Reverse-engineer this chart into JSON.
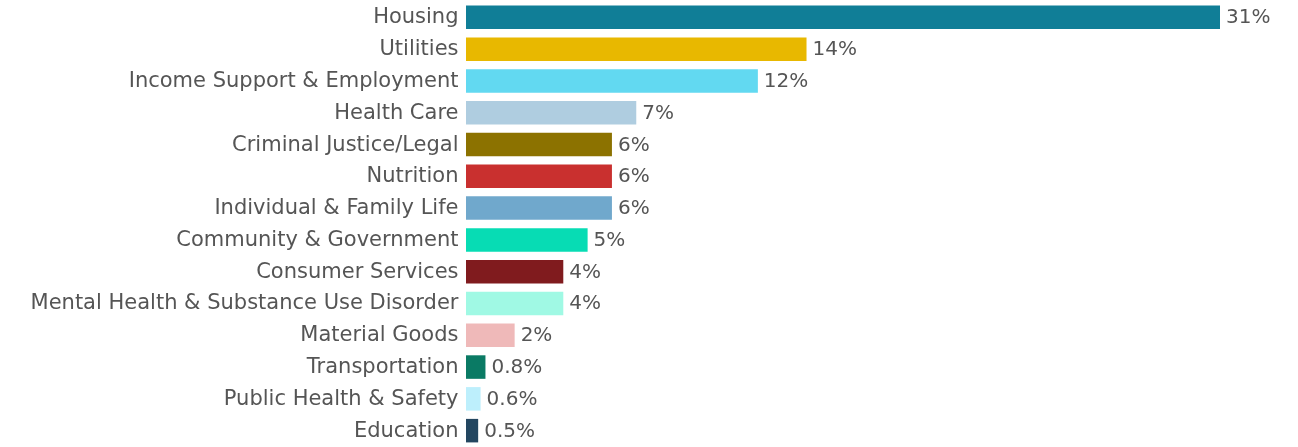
{
  "chart_data": {
    "type": "bar",
    "orientation": "horizontal",
    "categories": [
      "Housing",
      "Utilities",
      "Income Support & Employment",
      "Health Care",
      "Criminal Justice/Legal",
      "Nutrition",
      "Individual & Family Life",
      "Community & Government",
      "Consumer Services",
      "Mental Health & Substance Use Disorder",
      "Material Goods",
      "Transportation",
      "Public Health & Safety",
      "Education"
    ],
    "values": [
      31,
      14,
      12,
      7,
      6,
      6,
      6,
      5,
      4,
      4,
      2,
      0.8,
      0.6,
      0.5
    ],
    "value_labels": [
      "31%",
      "14%",
      "12%",
      "7%",
      "6%",
      "6%",
      "6%",
      "5%",
      "4%",
      "4%",
      "2%",
      "0.8%",
      "0.6%",
      "0.5%"
    ],
    "colors": [
      "#107e97",
      "#e8b800",
      "#62d9f1",
      "#afcde0",
      "#8c7200",
      "#c9302f",
      "#70a8cc",
      "#07dcb4",
      "#801b1e",
      "#a0f9e4",
      "#efb9b9",
      "#0a7a64",
      "#bdeffc",
      "#234660"
    ]
  }
}
